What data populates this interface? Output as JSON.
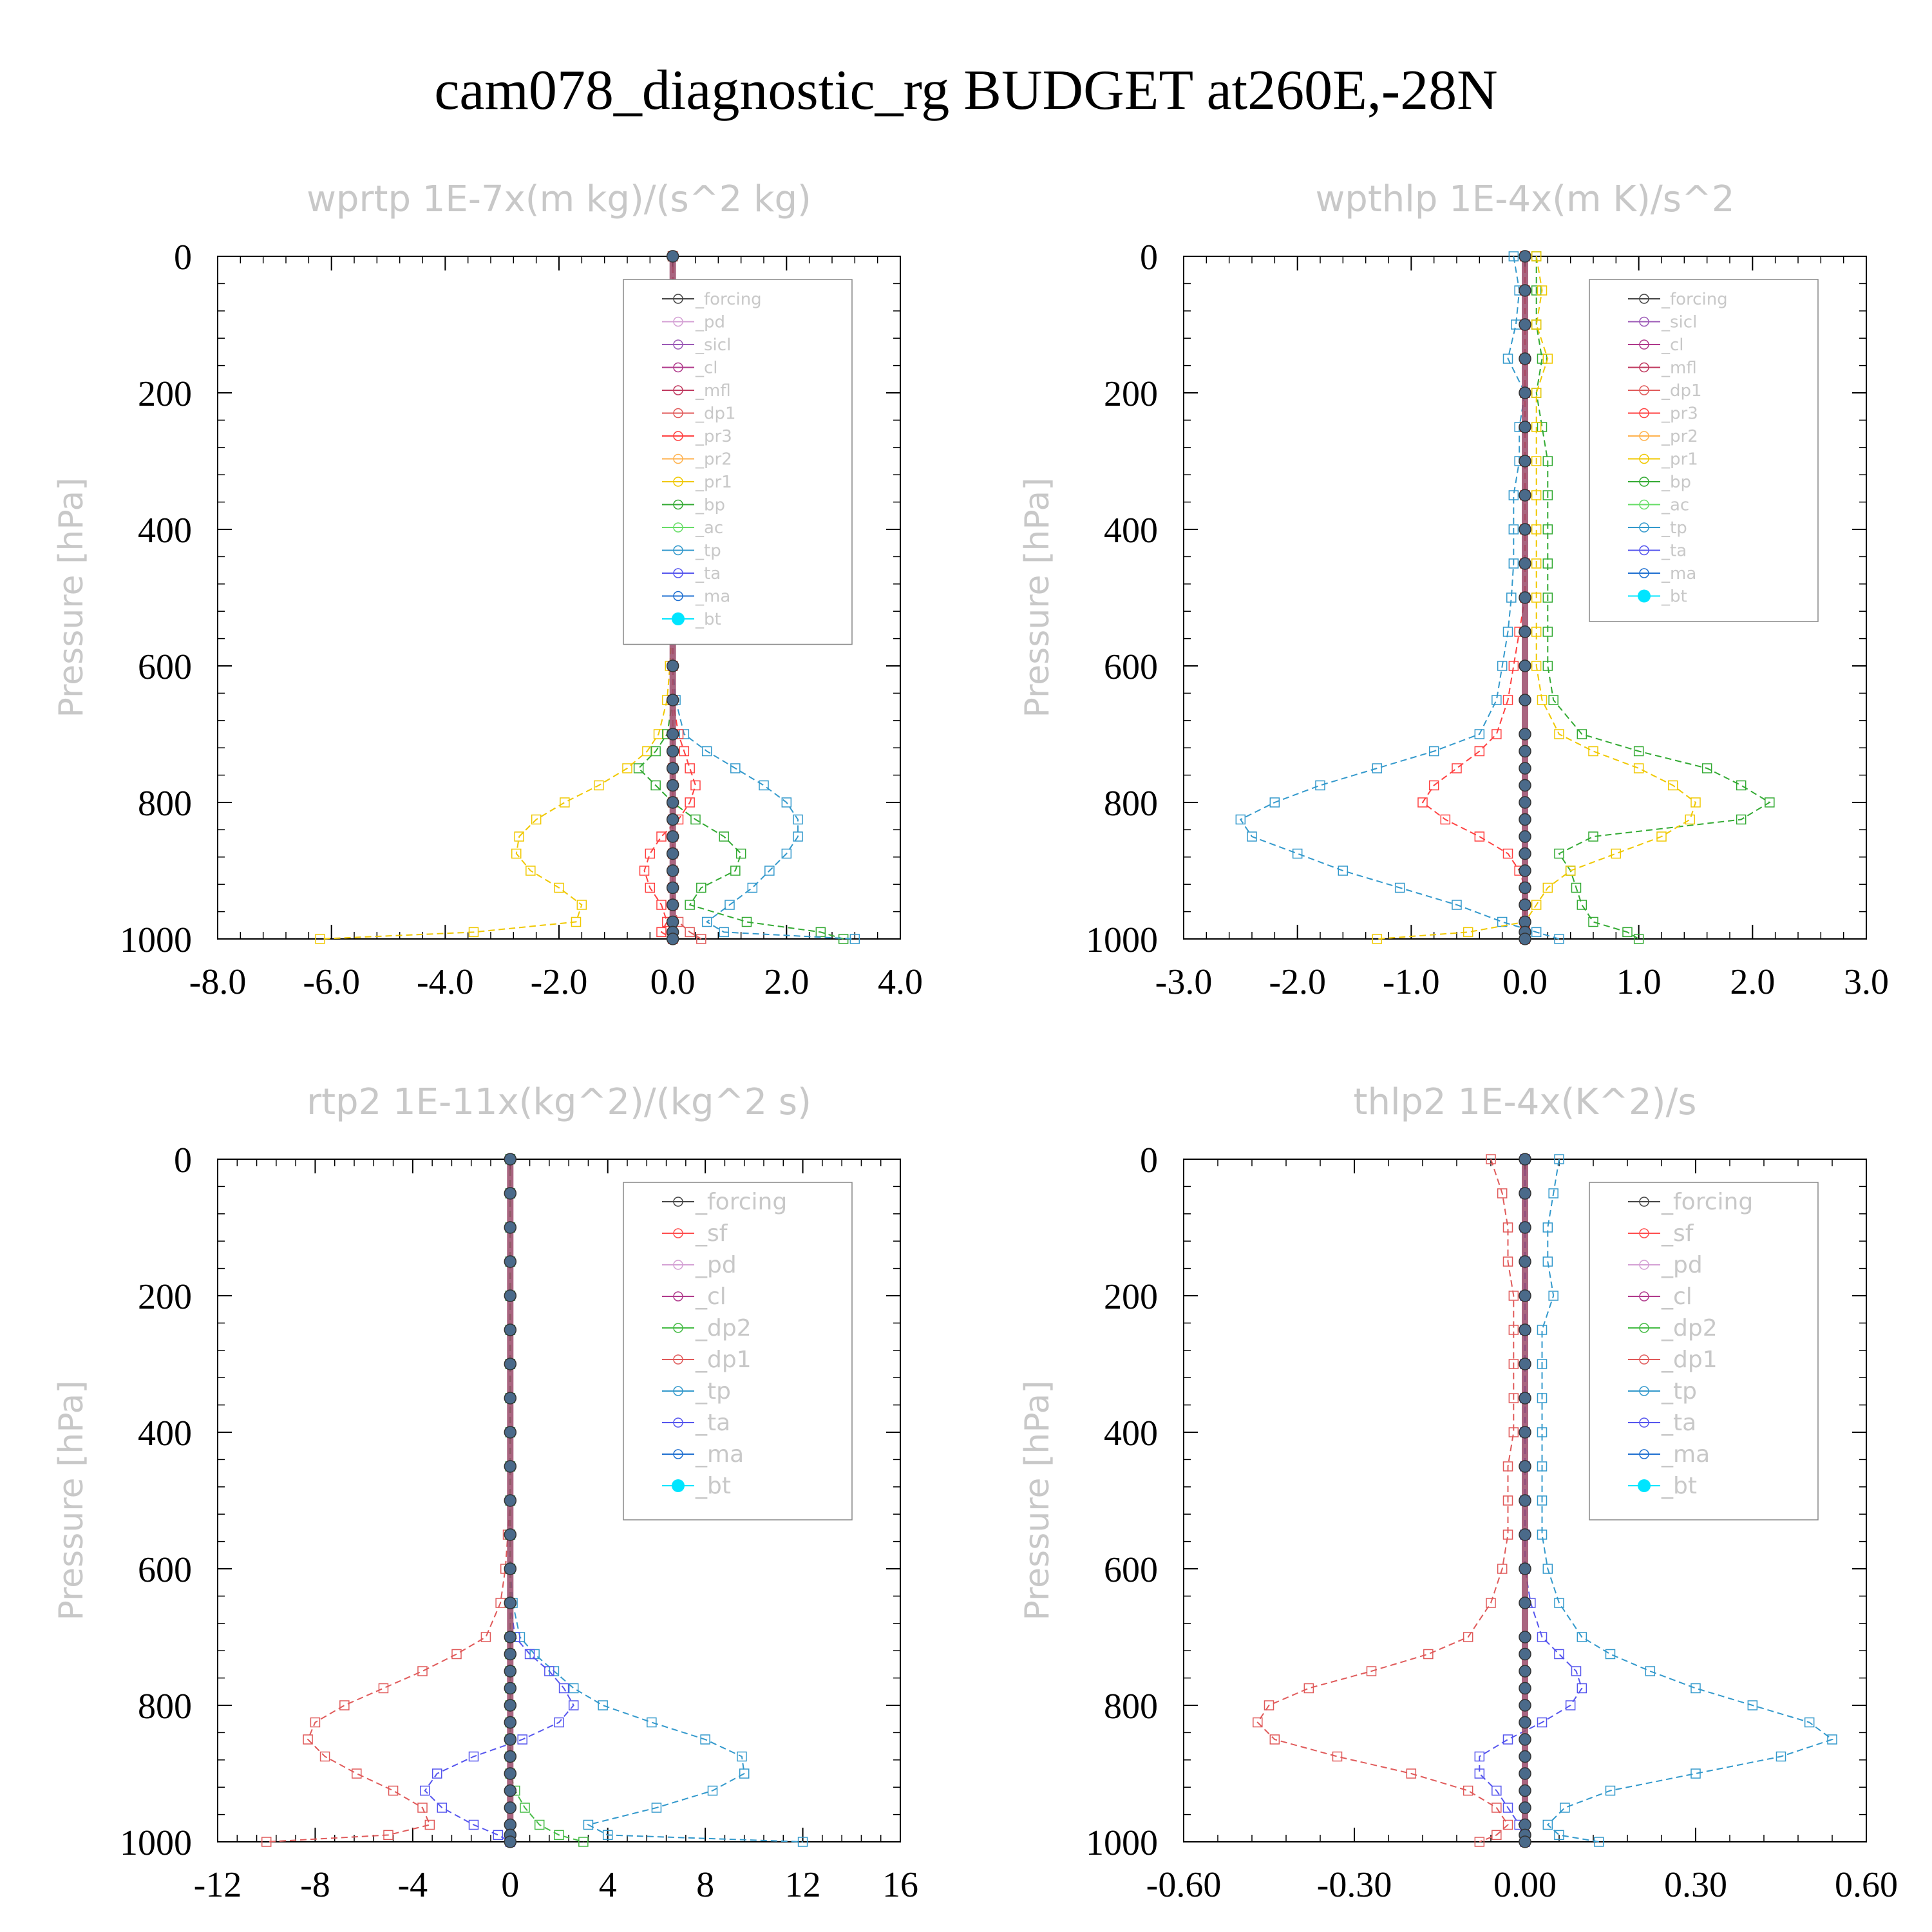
{
  "suptitle": "cam078_diagnostic_rg  BUDGET at260E,-28N",
  "colors": {
    "forcing": "#444444",
    "pd": "#d4a0d4",
    "sicl": "#9b59b6",
    "cl": "#b03a8c",
    "mfl": "#c0395f",
    "dp1": "#e05a5a",
    "pr3": "#ff4040",
    "pr2": "#ffb24d",
    "pr1": "#f0c800",
    "bp": "#33aa33",
    "ac": "#66dd66",
    "tp": "#3399cc",
    "ta": "#5555ee",
    "ma": "#1e6fd0",
    "bt": "#00e5ff",
    "sf": "#ff4d4d",
    "dp2": "#44bb44"
  },
  "chart_data": [
    {
      "type": "line",
      "title": "wprtp  1E-7x(m kg)/(s^2 kg)",
      "ylabel": "Pressure [hPa]",
      "xlim": [
        -8,
        4
      ],
      "ylim": [
        1000,
        0
      ],
      "grid": false,
      "xticks": [
        "-8.0",
        "-6.0",
        "-4.0",
        "-2.0",
        "0.0",
        "2.0",
        "4.0"
      ],
      "yticks": [
        "0",
        "200",
        "400",
        "600",
        "800",
        "1000"
      ],
      "legend": [
        "_forcing",
        "_pd",
        "_sicl",
        "_cl",
        "_mfl",
        "_dp1",
        "_pr3",
        "_pr2",
        "_pr1",
        "_bp",
        "_ac",
        "_tp",
        "_ta",
        "_ma",
        "_bt"
      ],
      "legend_position": "top-right",
      "pressure": [
        0,
        50,
        100,
        150,
        200,
        250,
        300,
        350,
        400,
        450,
        500,
        550,
        600,
        650,
        700,
        725,
        750,
        775,
        800,
        825,
        850,
        875,
        900,
        925,
        950,
        975,
        990,
        1000
      ],
      "series": [
        {
          "name": "_pr1",
          "key": "pr1",
          "values": [
            0,
            0,
            0,
            0,
            0,
            0,
            0,
            0,
            0,
            0,
            0,
            -0.02,
            -0.05,
            -0.1,
            -0.25,
            -0.45,
            -0.8,
            -1.3,
            -1.9,
            -2.4,
            -2.7,
            -2.75,
            -2.5,
            -2.0,
            -1.6,
            -1.7,
            -3.5,
            -6.2
          ]
        },
        {
          "name": "_bp",
          "key": "bp",
          "values": [
            0,
            0,
            0,
            0,
            0,
            0,
            0,
            0,
            0,
            0,
            0,
            0,
            0,
            0,
            -0.1,
            -0.3,
            -0.6,
            -0.3,
            0.0,
            0.4,
            0.9,
            1.2,
            1.1,
            0.5,
            0.3,
            1.3,
            2.6,
            3.0
          ]
        },
        {
          "name": "_tp",
          "key": "tp",
          "values": [
            0,
            0,
            0,
            0,
            0,
            0,
            0,
            0,
            0,
            0,
            0,
            0,
            0,
            0.05,
            0.2,
            0.6,
            1.1,
            1.6,
            2.0,
            2.2,
            2.2,
            2.0,
            1.7,
            1.4,
            1.0,
            0.6,
            0.9,
            3.2
          ]
        },
        {
          "name": "_pr3",
          "key": "pr3",
          "values": [
            0,
            0,
            0,
            0,
            0,
            0,
            0,
            0,
            0,
            0,
            0,
            0,
            0,
            0,
            0.1,
            0.2,
            0.3,
            0.4,
            0.3,
            0.1,
            -0.2,
            -0.4,
            -0.5,
            -0.4,
            -0.2,
            -0.1,
            -0.2,
            0.0
          ]
        },
        {
          "name": "_dp1",
          "key": "dp1",
          "values": [
            0,
            0,
            0,
            0,
            0,
            0,
            0,
            0,
            0,
            0,
            0,
            0,
            0,
            0,
            0,
            0,
            0,
            0,
            0,
            0,
            0,
            0,
            0,
            0,
            0,
            0.1,
            0.3,
            0.5
          ]
        },
        {
          "name": "_bt",
          "key": "bt",
          "values": [
            0,
            0,
            0,
            0,
            0,
            0,
            0,
            0,
            0,
            0,
            0,
            0,
            0,
            0,
            0,
            0,
            0,
            0,
            0,
            0,
            0,
            0,
            0,
            0,
            0,
            0,
            0,
            0
          ]
        }
      ]
    },
    {
      "type": "line",
      "title": "wpthlp  1E-4x(m K)/s^2",
      "ylabel": "Pressure [hPa]",
      "xlim": [
        -3,
        3
      ],
      "ylim": [
        1000,
        0
      ],
      "grid": false,
      "xticks": [
        "-3.0",
        "-2.0",
        "-1.0",
        "0.0",
        "1.0",
        "2.0",
        "3.0"
      ],
      "yticks": [
        "0",
        "200",
        "400",
        "600",
        "800",
        "1000"
      ],
      "legend": [
        "_forcing",
        "_sicl",
        "_cl",
        "_mfl",
        "_dp1",
        "_pr3",
        "_pr2",
        "_pr1",
        "_bp",
        "_ac",
        "_tp",
        "_ta",
        "_ma",
        "_bt"
      ],
      "legend_position": "top-right",
      "pressure": [
        0,
        50,
        100,
        150,
        200,
        250,
        300,
        350,
        400,
        450,
        500,
        550,
        600,
        650,
        700,
        725,
        750,
        775,
        800,
        825,
        850,
        875,
        900,
        925,
        950,
        975,
        990,
        1000
      ],
      "series": [
        {
          "name": "_tp",
          "key": "tp",
          "values": [
            -0.1,
            -0.05,
            -0.08,
            -0.15,
            0.0,
            -0.05,
            -0.05,
            -0.1,
            -0.1,
            -0.1,
            -0.12,
            -0.15,
            -0.2,
            -0.25,
            -0.4,
            -0.8,
            -1.3,
            -1.8,
            -2.2,
            -2.5,
            -2.4,
            -2.0,
            -1.6,
            -1.1,
            -0.6,
            -0.2,
            0.1,
            0.3
          ]
        },
        {
          "name": "_bp",
          "key": "bp",
          "values": [
            0.1,
            0.1,
            0.1,
            0.15,
            0.1,
            0.15,
            0.2,
            0.2,
            0.2,
            0.2,
            0.2,
            0.2,
            0.2,
            0.25,
            0.5,
            1.0,
            1.6,
            1.9,
            2.15,
            1.9,
            0.6,
            0.3,
            0.4,
            0.45,
            0.5,
            0.6,
            0.9,
            1.0
          ]
        },
        {
          "name": "_pr1",
          "key": "pr1",
          "values": [
            0.1,
            0.15,
            0.1,
            0.2,
            0.1,
            0.1,
            0.1,
            0.1,
            0.1,
            0.1,
            0.1,
            0.1,
            0.1,
            0.15,
            0.3,
            0.6,
            1.0,
            1.3,
            1.5,
            1.45,
            1.2,
            0.8,
            0.4,
            0.2,
            0.1,
            0.0,
            -0.5,
            -1.3
          ]
        },
        {
          "name": "_pr3",
          "key": "pr3",
          "values": [
            0,
            0,
            0,
            0,
            0,
            0,
            0,
            0,
            0,
            0,
            0,
            -0.05,
            -0.1,
            -0.15,
            -0.25,
            -0.4,
            -0.6,
            -0.8,
            -0.9,
            -0.7,
            -0.4,
            -0.15,
            -0.05,
            0.0,
            0.0,
            0.0,
            0.0,
            0.0
          ]
        },
        {
          "name": "_bt",
          "key": "bt",
          "values": [
            0,
            0,
            0,
            0,
            0,
            0,
            0,
            0,
            0,
            0,
            0,
            0,
            0,
            0,
            0,
            0,
            0,
            0,
            0,
            0,
            0,
            0,
            0,
            0,
            0,
            0,
            0,
            0
          ]
        }
      ]
    },
    {
      "type": "line",
      "title": "rtp2  1E-11x(kg^2)/(kg^2 s)",
      "ylabel": "Pressure [hPa]",
      "xlim": [
        -12,
        16
      ],
      "ylim": [
        1000,
        0
      ],
      "grid": false,
      "xticks": [
        "-12",
        "-8",
        "-4",
        "0",
        "4",
        "8",
        "12",
        "16"
      ],
      "yticks": [
        "0",
        "200",
        "400",
        "600",
        "800",
        "1000"
      ],
      "legend": [
        "_forcing",
        "_sf",
        "_pd",
        "_cl",
        "_dp2",
        "_dp1",
        "_tp",
        "_ta",
        "_ma",
        "_bt"
      ],
      "legend_position": "top-right",
      "pressure": [
        0,
        50,
        100,
        150,
        200,
        250,
        300,
        350,
        400,
        450,
        500,
        550,
        600,
        650,
        700,
        725,
        750,
        775,
        800,
        825,
        850,
        875,
        900,
        925,
        950,
        975,
        990,
        1000
      ],
      "series": [
        {
          "name": "_dp1",
          "key": "dp1",
          "values": [
            0,
            0,
            0,
            0,
            0,
            0,
            0,
            0,
            0,
            0,
            0,
            -0.1,
            -0.2,
            -0.4,
            -1.0,
            -2.2,
            -3.6,
            -5.2,
            -6.8,
            -8.0,
            -8.3,
            -7.6,
            -6.3,
            -4.8,
            -3.6,
            -3.3,
            -5.0,
            -10.0
          ]
        },
        {
          "name": "_tp",
          "key": "tp",
          "values": [
            0,
            0,
            0,
            0,
            0,
            0,
            0,
            0,
            0,
            0,
            0,
            0,
            0,
            0.1,
            0.4,
            1.0,
            1.8,
            2.6,
            3.8,
            5.8,
            8.0,
            9.5,
            9.6,
            8.3,
            6.0,
            3.2,
            4.0,
            12.0
          ]
        },
        {
          "name": "_ta",
          "key": "ta",
          "values": [
            0,
            0,
            0,
            0,
            0,
            0,
            0,
            0,
            0,
            0,
            0,
            0,
            0,
            0,
            0.2,
            0.8,
            1.6,
            2.2,
            2.6,
            2.0,
            0.5,
            -1.5,
            -3.0,
            -3.5,
            -2.8,
            -1.5,
            -0.5,
            0.0
          ]
        },
        {
          "name": "_dp2",
          "key": "dp2",
          "values": [
            0,
            0,
            0,
            0,
            0,
            0,
            0,
            0,
            0,
            0,
            0,
            0,
            0,
            0,
            0,
            0,
            0,
            0,
            0,
            0,
            0,
            0,
            0,
            0.2,
            0.6,
            1.2,
            2.0,
            3.0
          ]
        },
        {
          "name": "_bt",
          "key": "bt",
          "values": [
            0,
            0,
            0,
            0,
            0,
            0,
            0,
            0,
            0,
            0,
            0,
            0,
            0,
            0,
            0,
            0,
            0,
            0,
            0,
            0,
            0,
            0,
            0,
            0,
            0,
            0,
            0,
            0
          ]
        }
      ]
    },
    {
      "type": "line",
      "title": "thlp2  1E-4x(K^2)/s",
      "ylabel": "Pressure [hPa]",
      "xlim": [
        -0.6,
        0.6
      ],
      "ylim": [
        1000,
        0
      ],
      "grid": false,
      "xticks": [
        "-0.60",
        "-0.30",
        "0.00",
        "0.30",
        "0.60"
      ],
      "yticks": [
        "0",
        "200",
        "400",
        "600",
        "800",
        "1000"
      ],
      "legend": [
        "_forcing",
        "_sf",
        "_pd",
        "_cl",
        "_dp2",
        "_dp1",
        "_tp",
        "_ta",
        "_ma",
        "_bt"
      ],
      "legend_position": "top-right",
      "pressure": [
        0,
        50,
        100,
        150,
        200,
        250,
        300,
        350,
        400,
        450,
        500,
        550,
        600,
        650,
        700,
        725,
        750,
        775,
        800,
        825,
        850,
        875,
        900,
        925,
        950,
        975,
        990,
        1000
      ],
      "series": [
        {
          "name": "_dp1",
          "key": "dp1",
          "values": [
            -0.06,
            -0.04,
            -0.03,
            -0.03,
            -0.02,
            -0.02,
            -0.02,
            -0.02,
            -0.02,
            -0.03,
            -0.03,
            -0.03,
            -0.04,
            -0.06,
            -0.1,
            -0.17,
            -0.27,
            -0.38,
            -0.45,
            -0.47,
            -0.44,
            -0.33,
            -0.2,
            -0.1,
            -0.05,
            -0.03,
            -0.05,
            -0.08
          ]
        },
        {
          "name": "_tp",
          "key": "tp",
          "values": [
            0.06,
            0.05,
            0.04,
            0.04,
            0.05,
            0.03,
            0.03,
            0.03,
            0.03,
            0.03,
            0.03,
            0.03,
            0.04,
            0.06,
            0.1,
            0.15,
            0.22,
            0.3,
            0.4,
            0.5,
            0.54,
            0.45,
            0.3,
            0.15,
            0.07,
            0.04,
            0.06,
            0.13
          ]
        },
        {
          "name": "_ta",
          "key": "ta",
          "values": [
            0,
            0,
            0,
            0,
            0,
            0,
            0,
            0,
            0,
            0,
            0,
            0,
            0,
            0.01,
            0.03,
            0.06,
            0.09,
            0.1,
            0.08,
            0.03,
            -0.03,
            -0.08,
            -0.08,
            -0.05,
            -0.03,
            -0.01,
            0,
            0
          ]
        },
        {
          "name": "_bt",
          "key": "bt",
          "values": [
            0,
            0,
            0,
            0,
            0,
            0,
            0,
            0,
            0,
            0,
            0,
            0,
            0,
            0,
            0,
            0,
            0,
            0,
            0,
            0,
            0,
            0,
            0,
            0,
            0,
            0,
            0,
            0
          ]
        }
      ]
    }
  ]
}
